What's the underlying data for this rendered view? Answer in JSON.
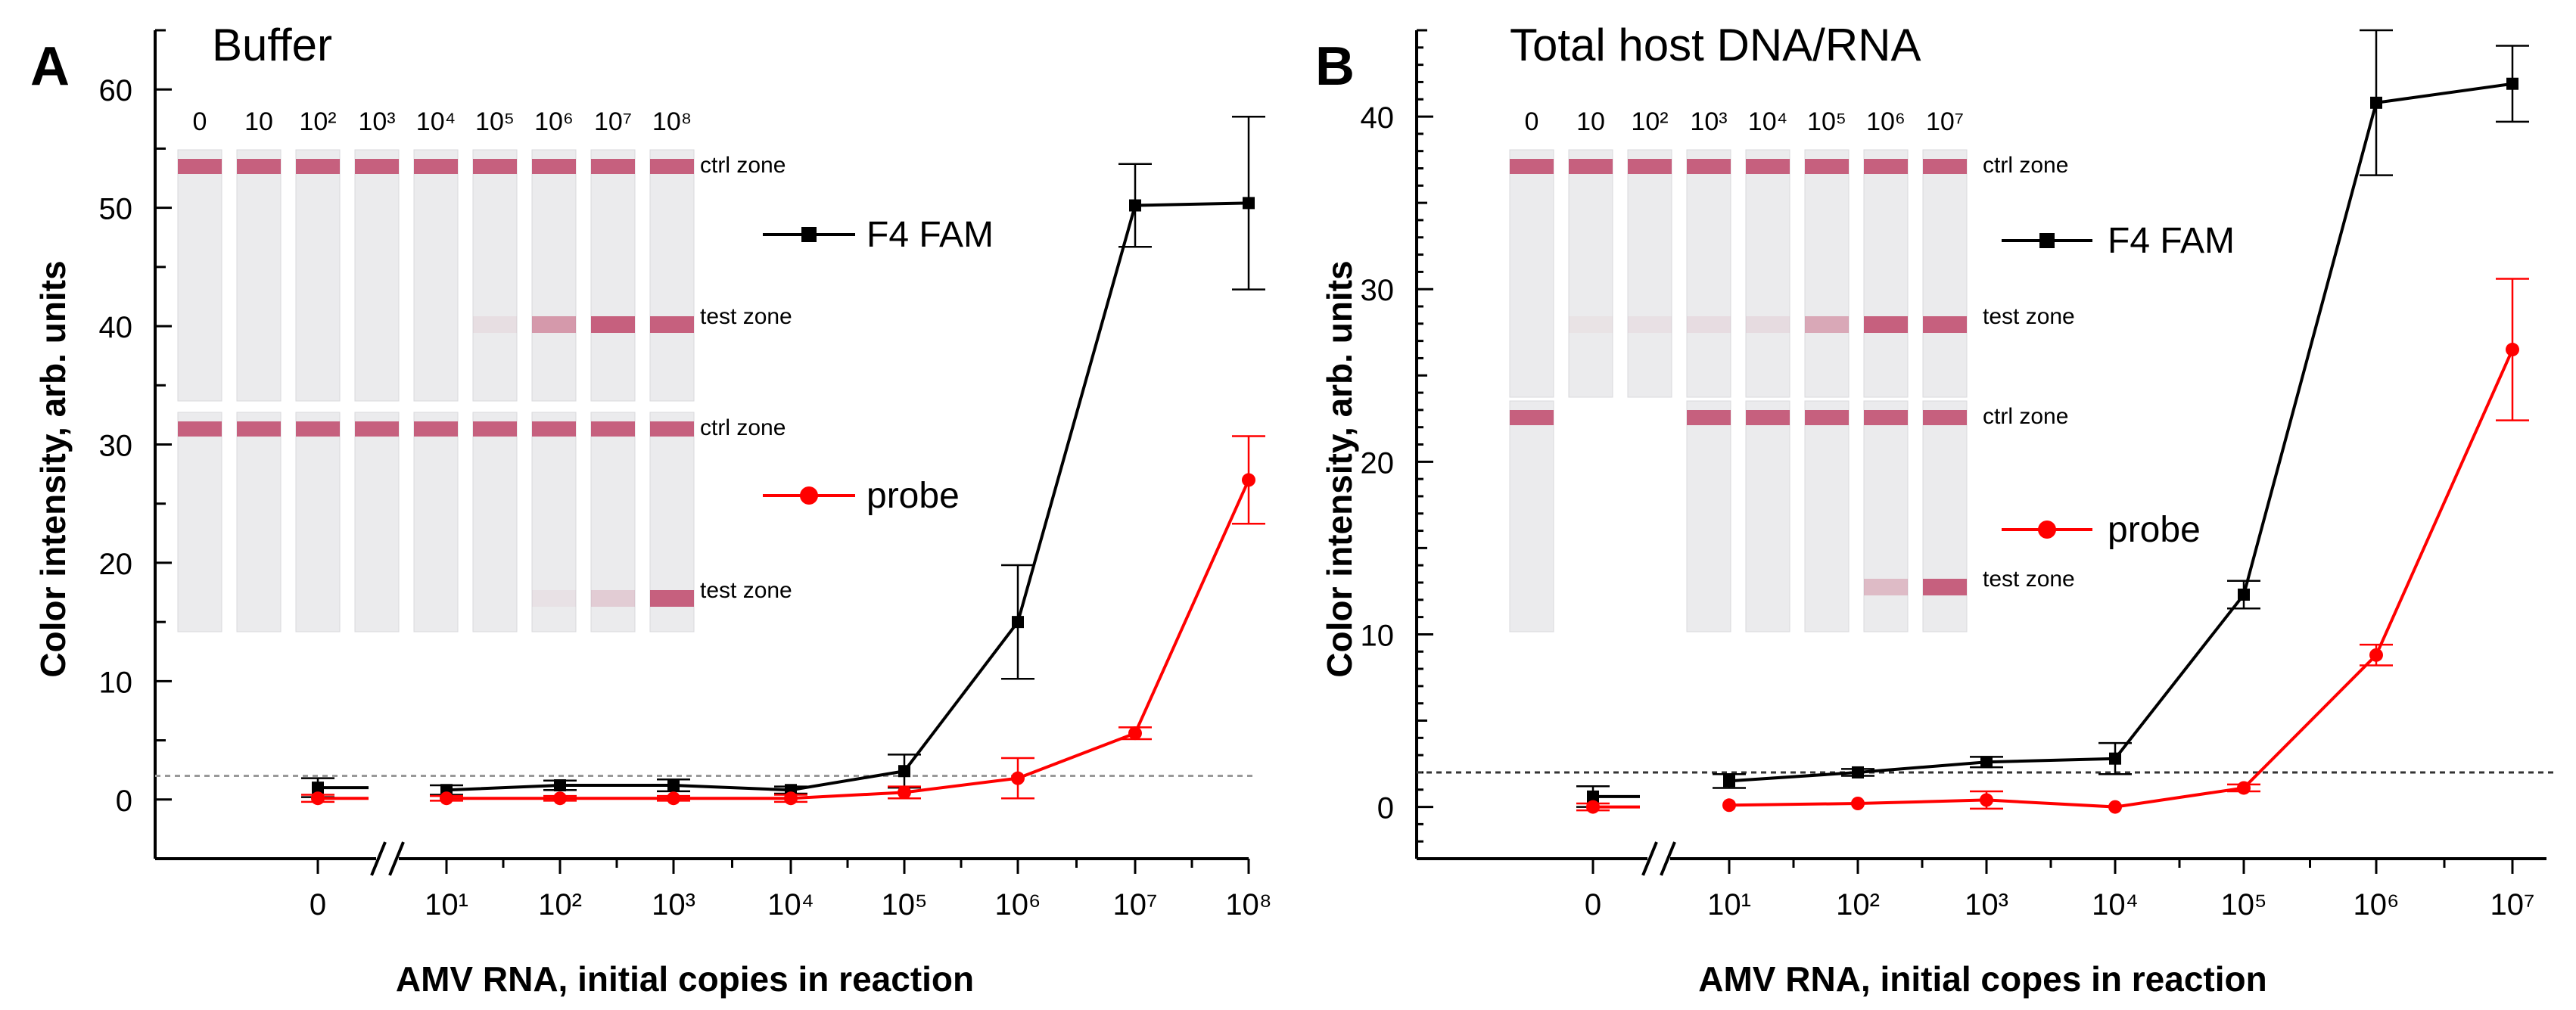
{
  "chart_data": [
    {
      "panel_label": "A",
      "title": "Buffer",
      "type": "line",
      "xlabel": "AMV RNA, initial copies in reaction",
      "ylabel": "Color intensity, arb. units",
      "ylim": [
        -5,
        65
      ],
      "x_tick_labels": [
        "0",
        "10¹",
        "10²",
        "10³",
        "10⁴",
        "10⁵",
        "10⁶",
        "10⁷",
        "10⁸"
      ],
      "y_ticks": [
        0,
        10,
        20,
        30,
        40,
        50,
        60
      ],
      "threshold": 2,
      "axis_break": true,
      "series": [
        {
          "name": "F4 FAM",
          "color": "#000000",
          "marker": "square",
          "values": [
            1.0,
            0.8,
            1.2,
            1.2,
            0.8,
            2.4,
            15.0,
            50.2,
            50.4
          ],
          "errors": [
            0.8,
            0.4,
            0.4,
            0.5,
            0.3,
            1.4,
            4.8,
            3.5,
            7.3
          ]
        },
        {
          "name": "probe",
          "color": "#ff0000",
          "marker": "circle",
          "values": [
            0.1,
            0.1,
            0.1,
            0.1,
            0.1,
            0.6,
            1.8,
            5.6,
            27.0
          ],
          "errors": [
            0.3,
            0.2,
            0.2,
            0.2,
            0.3,
            0.5,
            1.7,
            0.5,
            3.7
          ]
        }
      ],
      "strip_col_labels": [
        "0",
        "10",
        "10²",
        "10³",
        "10⁴",
        "10⁵",
        "10⁶",
        "10⁷",
        "10⁸"
      ],
      "zone_labels": [
        "ctrl zone",
        "test zone",
        "ctrl zone",
        "test zone"
      ]
    },
    {
      "panel_label": "B",
      "title": "Total host DNA/RNA",
      "type": "line",
      "xlabel": "AMV RNA, initial copes in reaction",
      "ylabel": "Color intensity, arb. units",
      "ylim": [
        -3,
        45
      ],
      "x_tick_labels": [
        "0",
        "10¹",
        "10²",
        "10³",
        "10⁴",
        "10⁵",
        "10⁶",
        "10⁷"
      ],
      "y_ticks": [
        0,
        10,
        20,
        30,
        40
      ],
      "threshold": 2,
      "axis_break": true,
      "series": [
        {
          "name": "F4 FAM",
          "color": "#000000",
          "marker": "square",
          "values": [
            0.6,
            1.5,
            2.0,
            2.6,
            2.8,
            12.3,
            40.8,
            41.9
          ],
          "errors": [
            0.6,
            0.4,
            0.2,
            0.3,
            0.9,
            0.8,
            4.2,
            2.2
          ]
        },
        {
          "name": "probe",
          "color": "#ff0000",
          "marker": "circle",
          "values": [
            0.0,
            0.1,
            0.2,
            0.4,
            0.0,
            1.1,
            8.8,
            26.5
          ],
          "errors": [
            0.2,
            0.1,
            0.1,
            0.5,
            0.1,
            0.2,
            0.6,
            4.1
          ]
        }
      ],
      "strip_col_labels": [
        "0",
        "10",
        "10²",
        "10³",
        "10⁴",
        "10⁵",
        "10⁶",
        "10⁷"
      ],
      "zone_labels": [
        "ctrl zone",
        "test zone",
        "ctrl zone",
        "test zone"
      ]
    }
  ],
  "colors": {
    "ink": "#000000",
    "probe": "#ff0000",
    "threshold": "#888888",
    "strip_band": "#c0486a"
  }
}
